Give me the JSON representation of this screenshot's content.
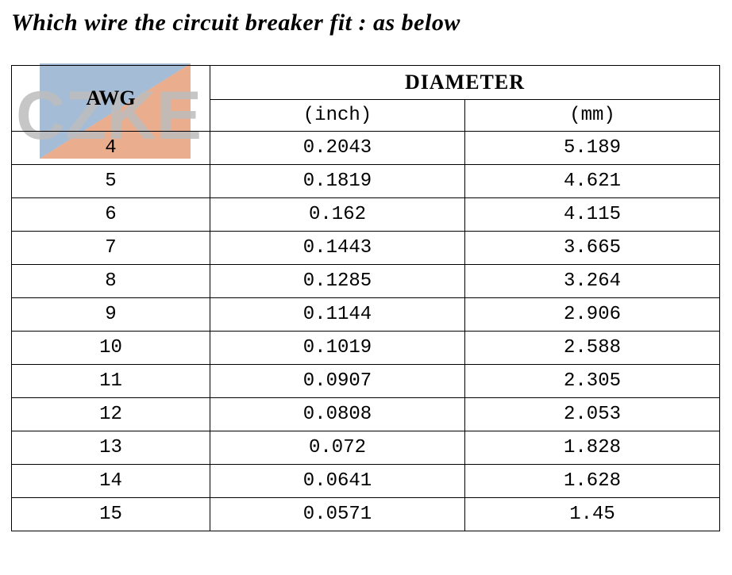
{
  "title": "Which wire the circuit breaker fit : as below",
  "watermark": {
    "text": "CZKE",
    "text_color": "#BDBDBD",
    "accent_blue": "#5A85B5",
    "accent_orange": "#D96A30"
  },
  "table": {
    "header_awg": "AWG",
    "header_diameter": "DIAMETER",
    "sub_inch": "(inch)",
    "sub_mm": "(mm)",
    "rows": [
      {
        "awg": "4",
        "inch": "0.2043",
        "mm": "5.189"
      },
      {
        "awg": "5",
        "inch": "0.1819",
        "mm": "4.621"
      },
      {
        "awg": "6",
        "inch": "0.162",
        "mm": "4.115"
      },
      {
        "awg": "7",
        "inch": "0.1443",
        "mm": "3.665"
      },
      {
        "awg": "8",
        "inch": "0.1285",
        "mm": "3.264"
      },
      {
        "awg": "9",
        "inch": "0.1144",
        "mm": "2.906"
      },
      {
        "awg": "10",
        "inch": "0.1019",
        "mm": "2.588"
      },
      {
        "awg": "11",
        "inch": "0.0907",
        "mm": "2.305"
      },
      {
        "awg": "12",
        "inch": "0.0808",
        "mm": "2.053"
      },
      {
        "awg": "13",
        "inch": "0.072",
        "mm": "1.828"
      },
      {
        "awg": "14",
        "inch": "0.0641",
        "mm": "1.628"
      },
      {
        "awg": "15",
        "inch": "0.0571",
        "mm": "1.45"
      }
    ]
  }
}
